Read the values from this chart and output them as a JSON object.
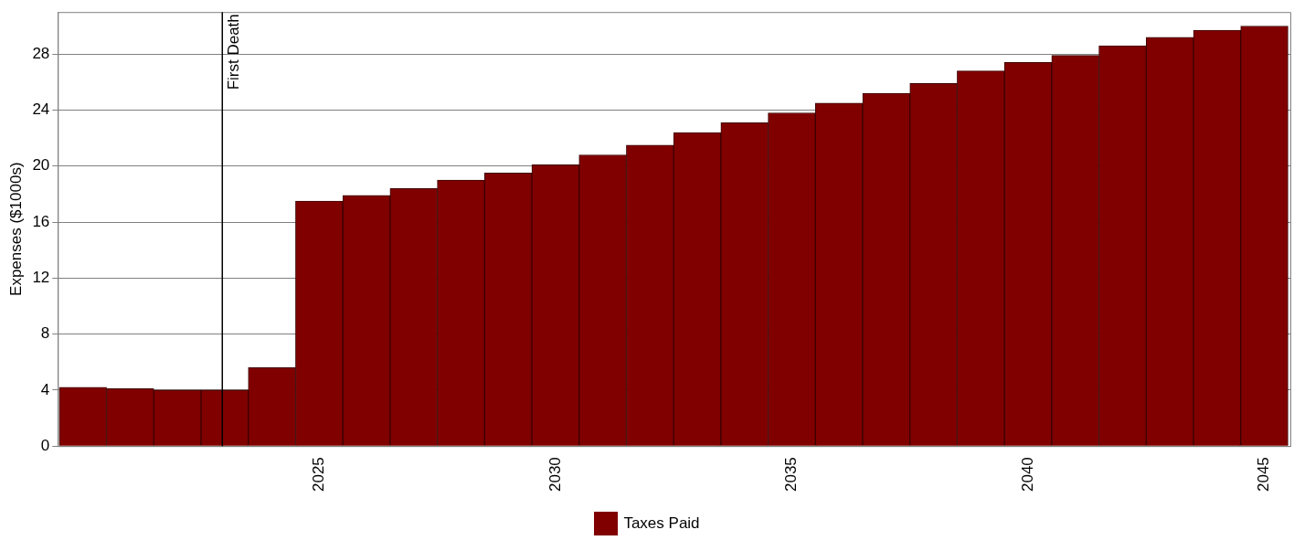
{
  "chart_data": {
    "type": "bar",
    "ylabel": "Expenses ($1000s)",
    "x": [
      2020,
      2021,
      2022,
      2023,
      2024,
      2025,
      2026,
      2027,
      2028,
      2029,
      2030,
      2031,
      2032,
      2033,
      2034,
      2035,
      2036,
      2037,
      2038,
      2039,
      2040,
      2041,
      2042,
      2043,
      2044,
      2045
    ],
    "series": [
      {
        "name": "Taxes Paid",
        "color": "#800000",
        "values": [
          4.2,
          4.1,
          4.0,
          4.0,
          5.6,
          17.5,
          17.9,
          18.4,
          19.0,
          19.5,
          20.1,
          20.8,
          21.5,
          22.4,
          23.1,
          23.8,
          24.5,
          25.2,
          25.9,
          26.8,
          27.4,
          27.9,
          28.6,
          29.2,
          29.7,
          30.0
        ]
      }
    ],
    "xlim": [
      2019.47,
      2045.55
    ],
    "xticks": [
      2025,
      2030,
      2035,
      2040,
      2045
    ],
    "ylim": [
      0,
      31
    ],
    "yticks": [
      0,
      4,
      8,
      12,
      16,
      20,
      24,
      28
    ],
    "ref_lines": [
      {
        "axis": "x",
        "value": 2022.95,
        "label": "First Death",
        "color": "#000000"
      }
    ],
    "grid": "y",
    "legend": "bottom"
  }
}
